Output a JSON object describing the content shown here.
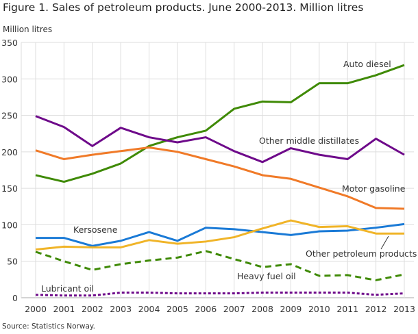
{
  "chart_data": {
    "type": "line",
    "title": "Figure 1. Sales of petroleum products. June 2000-2013. Million litres",
    "ylabel": "Million litres",
    "xlabel": "",
    "source": "Source: Statistics Norway.",
    "ylim": [
      0,
      350
    ],
    "yticks": [
      0,
      50,
      100,
      150,
      200,
      250,
      300,
      350
    ],
    "grid": true,
    "x": [
      "2000",
      "2001",
      "2002",
      "2003",
      "2004",
      "2005",
      "2006",
      "2007",
      "2008",
      "2009",
      "2010",
      "2011",
      "2012",
      "2013"
    ],
    "series": [
      {
        "name": "Auto diesel",
        "color": "#3f8a06",
        "dash": "solid",
        "values": [
          168,
          159,
          170,
          184,
          208,
          220,
          229,
          259,
          269,
          268,
          294,
          294,
          305,
          319
        ]
      },
      {
        "name": "Other middle distillates",
        "color": "#6e0a8a",
        "dash": "solid",
        "values": [
          249,
          234,
          208,
          233,
          220,
          213,
          220,
          201,
          186,
          205,
          196,
          190,
          218,
          196
        ]
      },
      {
        "name": "Motor gasoline",
        "color": "#f07a28",
        "dash": "solid",
        "values": [
          202,
          190,
          196,
          201,
          206,
          200,
          190,
          180,
          168,
          163,
          151,
          139,
          123,
          122
        ]
      },
      {
        "name": "Kersosene",
        "color": "#1a7ad6",
        "dash": "solid",
        "values": [
          82,
          82,
          71,
          78,
          90,
          78,
          96,
          94,
          90,
          86,
          91,
          92,
          96,
          101
        ]
      },
      {
        "name": "Other petroleum products",
        "color": "#f0b428",
        "dash": "solid",
        "values": [
          66,
          70,
          69,
          69,
          79,
          74,
          77,
          83,
          95,
          106,
          97,
          98,
          88,
          88
        ]
      },
      {
        "name": "Heavy fuel oil",
        "color": "#3f8a06",
        "dash": "dashed",
        "values": [
          63,
          50,
          38,
          46,
          51,
          55,
          64,
          53,
          42,
          46,
          30,
          31,
          24,
          32
        ]
      },
      {
        "name": "Lubricant oil",
        "color": "#6e0a8a",
        "dash": "dotted",
        "values": [
          4,
          3,
          3,
          7,
          7,
          6,
          6,
          6,
          7,
          7,
          7,
          7,
          4,
          6
        ]
      }
    ]
  }
}
